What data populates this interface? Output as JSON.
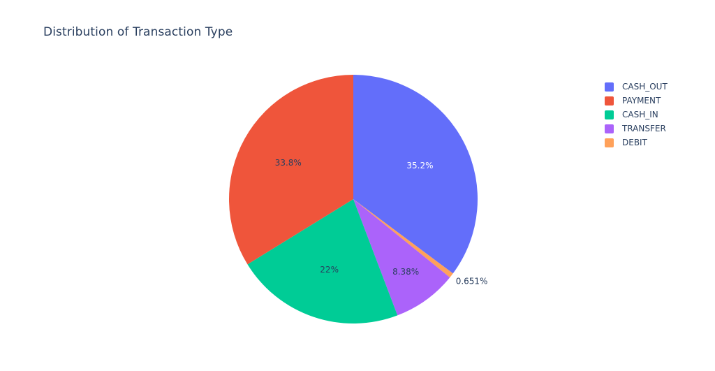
{
  "chart_data": {
    "type": "pie",
    "title": "Distribution of Transaction Type",
    "slices": [
      {
        "label": "CASH_OUT",
        "percent": 35.2,
        "value_label": "35.2%",
        "color": "#636efa",
        "label_color": "#ffffff",
        "label_position": "inside"
      },
      {
        "label": "DEBIT",
        "percent": 0.651,
        "value_label": "0.651%",
        "color": "#ffa15a",
        "label_color": "#2a3f5f",
        "label_position": "outside"
      },
      {
        "label": "TRANSFER",
        "percent": 8.38,
        "value_label": "8.38%",
        "color": "#ab63fa",
        "label_color": "#2a3f5f",
        "label_position": "inside"
      },
      {
        "label": "CASH_IN",
        "percent": 22,
        "value_label": "22%",
        "color": "#00cc96",
        "label_color": "#2a3f5f",
        "label_position": "inside"
      },
      {
        "label": "PAYMENT",
        "percent": 33.8,
        "value_label": "33.8%",
        "color": "#ef553b",
        "label_color": "#2a3f5f",
        "label_position": "inside"
      }
    ],
    "legend": [
      {
        "label": "CASH_OUT",
        "color": "#636efa"
      },
      {
        "label": "PAYMENT",
        "color": "#ef553b"
      },
      {
        "label": "CASH_IN",
        "color": "#00cc96"
      },
      {
        "label": "TRANSFER",
        "color": "#ab63fa"
      },
      {
        "label": "DEBIT",
        "color": "#ffa15a"
      }
    ],
    "legend_position": "top-right",
    "direction": "clockwise",
    "start": "top"
  }
}
